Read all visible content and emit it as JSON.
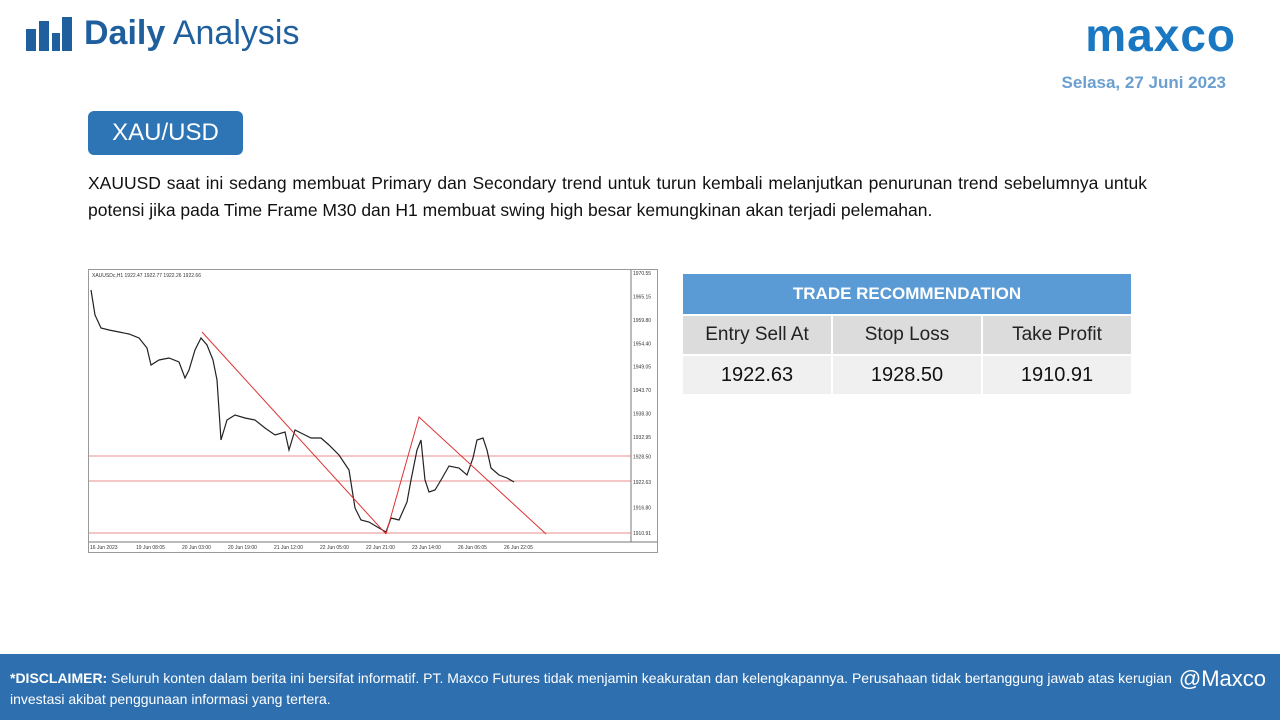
{
  "header": {
    "title_bold": "Daily",
    "title_rest": "Analysis",
    "brand": "maxco",
    "date": "Selasa, 27 Juni 2023"
  },
  "section": {
    "tag": "XAU/USD",
    "paragraph": "XAUUSD saat ini sedang membuat Primary dan Secondary trend untuk turun kembali melanjutkan penurunan trend sebelumnya untuk potensi jika pada Time Frame M30 dan H1 membuat swing high besar kemungkinan akan terjadi pelemahan."
  },
  "chart": {
    "caption": "XAUUSDc,H1  1922.47 1922.77 1922.26 1922.66",
    "price_labels": [
      "1970.55",
      "1965.15",
      "1959.80",
      "1954.40",
      "1949.05",
      "1943.70",
      "1938.30",
      "1932.95",
      "1928.50",
      "1922.63",
      "1916.80",
      "1910.91"
    ],
    "time_labels": [
      "16 Jun 2023",
      "19 Jun 08:05",
      "20 Jun 03:00",
      "20 Jun 19:00",
      "21 Jun 12:00",
      "22 Jun 05:00",
      "22 Jun 21:00",
      "23 Jun 14:00",
      "26 Jun 06:05",
      "26 Jun 22:05"
    ]
  },
  "table": {
    "title": "TRADE RECOMMENDATION",
    "headers": [
      "Entry Sell At",
      "Stop Loss",
      "Take Profit"
    ],
    "values": [
      "1922.63",
      "1928.50",
      "1910.91"
    ]
  },
  "footer": {
    "label": "*DISCLAIMER:",
    "text": "Seluruh konten dalam berita ini bersifat informatif. PT. Maxco Futures tidak menjamin keakuratan dan kelengkapannya. Perusahaan tidak bertanggung jawab atas kerugian investasi akibat penggunaan informasi yang tertera.",
    "handle": "@Maxco"
  }
}
